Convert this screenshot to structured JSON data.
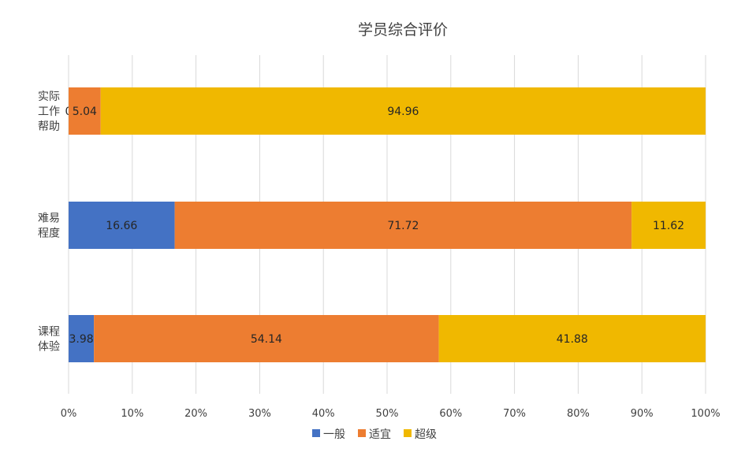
{
  "chart_data": {
    "type": "bar",
    "orientation": "horizontal",
    "stacked": "percent",
    "title": "学员综合评价",
    "categories": [
      [
        "实际",
        "工作",
        "帮助"
      ],
      [
        "难易",
        "程度"
      ],
      [
        "课程",
        "体验"
      ]
    ],
    "series": [
      {
        "name": "一般",
        "color": "#4472c4",
        "values": [
          0,
          16.66,
          3.98
        ],
        "labels": [
          "0",
          "16.66",
          "3.98"
        ]
      },
      {
        "name": "适宜",
        "color": "#ed7d31",
        "values": [
          5.04,
          71.72,
          54.14
        ],
        "labels": [
          "5.04",
          "71.72",
          "54.14"
        ]
      },
      {
        "name": "超级",
        "color": "#f0b800",
        "values": [
          94.96,
          11.62,
          41.88
        ],
        "labels": [
          "94.96",
          "11.62",
          "41.88"
        ]
      }
    ],
    "xlim": [
      0,
      100
    ],
    "x_ticks": [
      "0%",
      "10%",
      "20%",
      "30%",
      "40%",
      "50%",
      "60%",
      "70%",
      "80%",
      "90%",
      "100%"
    ],
    "grid": true,
    "legend": "bottom"
  }
}
